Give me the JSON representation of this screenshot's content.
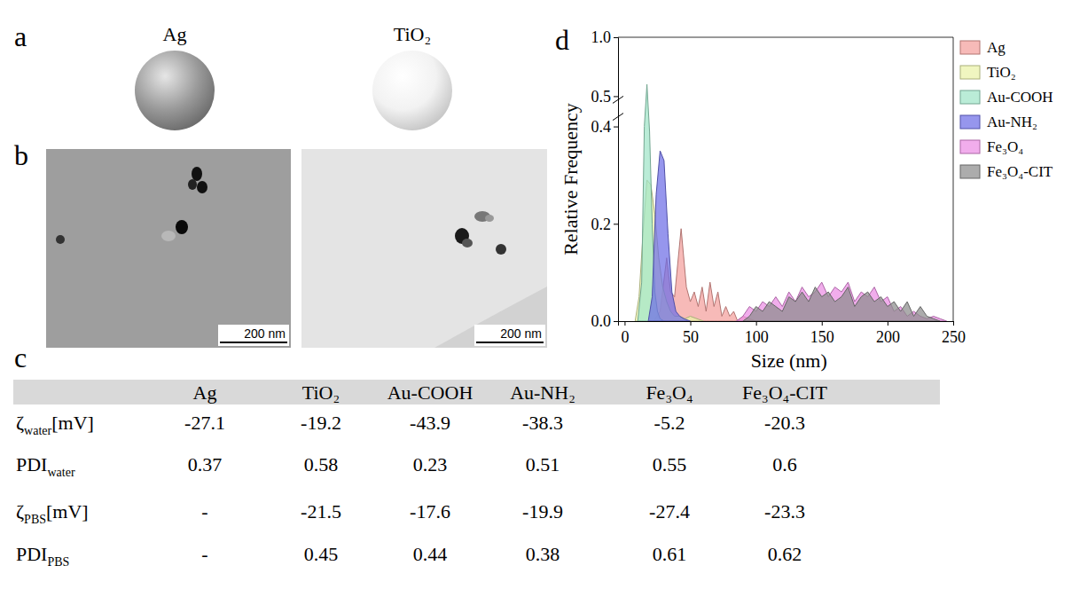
{
  "panel_letters": [
    "a",
    "b",
    "c",
    "d"
  ],
  "panel_a": {
    "labels": [
      "Ag",
      "TiO₂"
    ]
  },
  "panel_b": {
    "scale_bars": [
      "200 nm",
      "200 nm"
    ]
  },
  "table": {
    "columns": [
      "Ag",
      "TiO₂",
      "Au-COOH",
      "Au-NH₂",
      "Fe₃O₄",
      "Fe₃O₄-CIT"
    ],
    "rows": [
      {
        "label": "ζ",
        "sub": "water",
        "unit": "[mV]",
        "cells": [
          -27.1,
          -19.2,
          -43.9,
          -38.3,
          -5.2,
          -20.3
        ]
      },
      {
        "label": "PDI",
        "sub": "water",
        "cells": [
          0.37,
          0.58,
          0.23,
          0.51,
          0.55,
          0.6
        ]
      },
      {
        "label": "ζ",
        "sub": "PBS",
        "unit": "[mV]",
        "cells": [
          "-",
          -21.5,
          -17.6,
          -19.9,
          -27.4,
          -23.3
        ]
      },
      {
        "label": "PDI",
        "sub": "PBS",
        "cells": [
          "-",
          0.45,
          0.44,
          0.38,
          0.61,
          0.62
        ]
      }
    ]
  },
  "chart_data": {
    "type": "area",
    "xlabel": "Size (nm)",
    "ylabel": "Relative Frequency",
    "xlim": [
      -5,
      250
    ],
    "xticks": [
      0,
      50,
      100,
      150,
      200,
      250
    ],
    "ylim": [
      0,
      1
    ],
    "yticks": [
      {
        "value": 0,
        "label": "0.0"
      },
      0.2,
      0.4,
      0.5,
      {
        "value": 1,
        "label": "1.0"
      }
    ],
    "y_break": [
      0.42,
      0.47
    ],
    "legend": "right",
    "series": [
      {
        "name": "Ag",
        "color": "#f4a09c",
        "x": [
          22,
          27,
          32,
          35,
          38,
          43,
          47,
          50,
          53,
          56,
          59,
          62,
          65,
          68,
          71,
          74,
          77,
          80,
          83,
          86,
          90,
          95,
          100
        ],
        "values": [
          0,
          0.02,
          0.13,
          0.06,
          0.05,
          0.19,
          0.07,
          0.04,
          0.06,
          0.03,
          0.07,
          0.02,
          0.08,
          0.03,
          0.06,
          0.01,
          0.03,
          0.01,
          0.02,
          0,
          0.01,
          0.005,
          0
        ]
      },
      {
        "name": "TiO₂",
        "color": "#eaf3a8",
        "x": [
          8,
          11,
          14,
          17,
          20,
          23,
          26,
          29,
          32,
          35,
          38,
          42,
          46,
          50,
          55,
          60
        ],
        "values": [
          0,
          0.05,
          0.18,
          0.29,
          0.28,
          0.22,
          0.13,
          0.07,
          0.04,
          0.02,
          0.01,
          0.01,
          0.005,
          0.01,
          0.005,
          0
        ]
      },
      {
        "name": "Au-COOH",
        "color": "#9fe5c8",
        "x": [
          10,
          13,
          15,
          17,
          19,
          21,
          23,
          25,
          27,
          30
        ],
        "values": [
          0,
          0.08,
          0.4,
          0.6,
          0.39,
          0.2,
          0.06,
          0.02,
          0.005,
          0
        ]
      },
      {
        "name": "Au-NH₂",
        "color": "#6e6ee6",
        "x": [
          18,
          21,
          24,
          27,
          30,
          33,
          36,
          39,
          42,
          45,
          50
        ],
        "values": [
          0,
          0.05,
          0.26,
          0.35,
          0.33,
          0.18,
          0.06,
          0.02,
          0.01,
          0.005,
          0
        ]
      },
      {
        "name": "Fe₃O₄",
        "color": "#ec8de4",
        "x": [
          85,
          90,
          95,
          100,
          105,
          110,
          115,
          120,
          125,
          130,
          135,
          140,
          145,
          150,
          155,
          160,
          165,
          170,
          175,
          180,
          185,
          190,
          195,
          200,
          205,
          210,
          215,
          220,
          225,
          230,
          235,
          240,
          245
        ],
        "values": [
          0,
          0.01,
          0.03,
          0.02,
          0.04,
          0.03,
          0.05,
          0.03,
          0.06,
          0.04,
          0.07,
          0.05,
          0.06,
          0.08,
          0.05,
          0.07,
          0.06,
          0.08,
          0.04,
          0.06,
          0.05,
          0.07,
          0.04,
          0.05,
          0.02,
          0.03,
          0.01,
          0.02,
          0.01,
          0.005,
          0.01,
          0.005,
          0
        ]
      },
      {
        "name": "Fe₃O₄-CIT",
        "color": "#8c8c8c",
        "x": [
          90,
          95,
          100,
          105,
          110,
          115,
          120,
          125,
          130,
          135,
          140,
          145,
          150,
          155,
          160,
          165,
          170,
          175,
          180,
          185,
          190,
          195,
          200,
          205,
          210,
          215,
          220,
          225,
          230,
          235,
          240
        ],
        "values": [
          0,
          0.01,
          0.03,
          0.02,
          0.04,
          0.03,
          0.02,
          0.05,
          0.04,
          0.06,
          0.04,
          0.07,
          0.05,
          0.06,
          0.04,
          0.05,
          0.07,
          0.03,
          0.05,
          0.06,
          0.04,
          0.05,
          0.03,
          0.04,
          0.02,
          0.04,
          0.01,
          0.03,
          0.01,
          0.005,
          0
        ]
      }
    ]
  }
}
